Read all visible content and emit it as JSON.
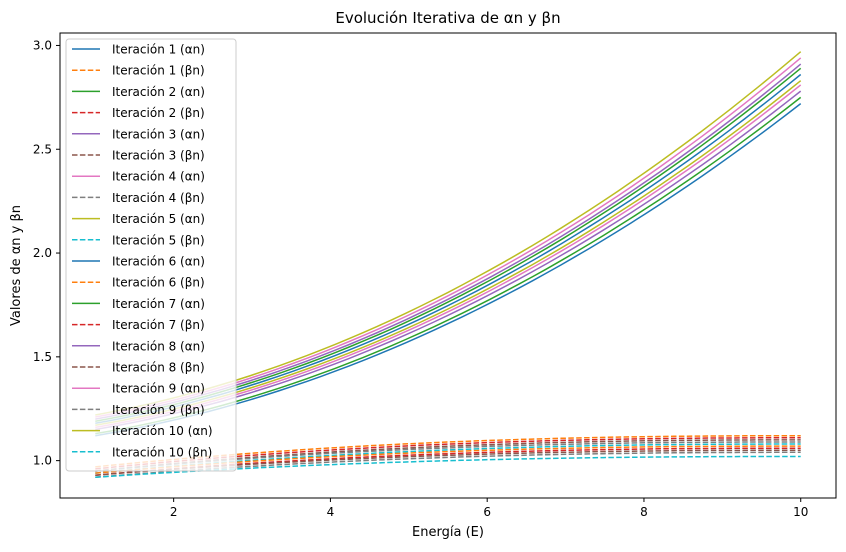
{
  "chart_data": {
    "type": "line",
    "title": "Evolución Iterativa de αn y βn",
    "xlabel": "Energía (E)",
    "ylabel": "Valores de αn y βn",
    "xlim": [
      0.55,
      10.45
    ],
    "ylim": [
      0.82,
      3.06
    ],
    "xticks": [
      2,
      4,
      6,
      8,
      10
    ],
    "yticks": [
      1.0,
      1.5,
      2.0,
      2.5,
      3.0
    ],
    "grid": false,
    "legend_position": "upper-left",
    "x_range": [
      1,
      10
    ],
    "series": [
      {
        "name": "Iteración 1 (αn)",
        "style": "solid",
        "color": "#1f77b4",
        "values": [
          1.12,
          2.72
        ]
      },
      {
        "name": "Iteración 1 (βn)",
        "style": "dashed",
        "color": "#ff7f0e",
        "values": [
          0.97,
          1.12
        ]
      },
      {
        "name": "Iteración 2 (αn)",
        "style": "solid",
        "color": "#2ca02c",
        "values": [
          1.13,
          2.75
        ]
      },
      {
        "name": "Iteración 2 (βn)",
        "style": "dashed",
        "color": "#d62728",
        "values": [
          0.96,
          1.11
        ]
      },
      {
        "name": "Iteración 3 (αn)",
        "style": "solid",
        "color": "#9467bd",
        "values": [
          1.15,
          2.78
        ]
      },
      {
        "name": "Iteración 3 (βn)",
        "style": "dashed",
        "color": "#8c564b",
        "values": [
          0.95,
          1.1
        ]
      },
      {
        "name": "Iteración 4 (αn)",
        "style": "solid",
        "color": "#e377c2",
        "values": [
          1.16,
          2.81
        ]
      },
      {
        "name": "Iteración 4 (βn)",
        "style": "dashed",
        "color": "#7f7f7f",
        "values": [
          0.95,
          1.09
        ]
      },
      {
        "name": "Iteración 5 (αn)",
        "style": "solid",
        "color": "#bcbd22",
        "values": [
          1.17,
          2.83
        ]
      },
      {
        "name": "Iteración 5 (βn)",
        "style": "dashed",
        "color": "#17becf",
        "values": [
          0.94,
          1.08
        ]
      },
      {
        "name": "Iteración 6 (αn)",
        "style": "solid",
        "color": "#1f77b4",
        "values": [
          1.18,
          2.86
        ]
      },
      {
        "name": "Iteración 6 (βn)",
        "style": "dashed",
        "color": "#ff7f0e",
        "values": [
          0.94,
          1.07
        ]
      },
      {
        "name": "Iteración 7 (αn)",
        "style": "solid",
        "color": "#2ca02c",
        "values": [
          1.19,
          2.89
        ]
      },
      {
        "name": "Iteración 7 (βn)",
        "style": "dashed",
        "color": "#d62728",
        "values": [
          0.93,
          1.06
        ]
      },
      {
        "name": "Iteración 8 (αn)",
        "style": "solid",
        "color": "#9467bd",
        "values": [
          1.2,
          2.91
        ]
      },
      {
        "name": "Iteración 8 (βn)",
        "style": "dashed",
        "color": "#8c564b",
        "values": [
          0.93,
          1.05
        ]
      },
      {
        "name": "Iteración 9 (αn)",
        "style": "solid",
        "color": "#e377c2",
        "values": [
          1.21,
          2.94
        ]
      },
      {
        "name": "Iteración 9 (βn)",
        "style": "dashed",
        "color": "#7f7f7f",
        "values": [
          0.92,
          1.04
        ]
      },
      {
        "name": "Iteración 10 (αn)",
        "style": "solid",
        "color": "#bcbd22",
        "values": [
          1.22,
          2.97
        ]
      },
      {
        "name": "Iteración 10 (βn)",
        "style": "dashed",
        "color": "#17becf",
        "values": [
          0.92,
          1.02
        ]
      }
    ]
  }
}
